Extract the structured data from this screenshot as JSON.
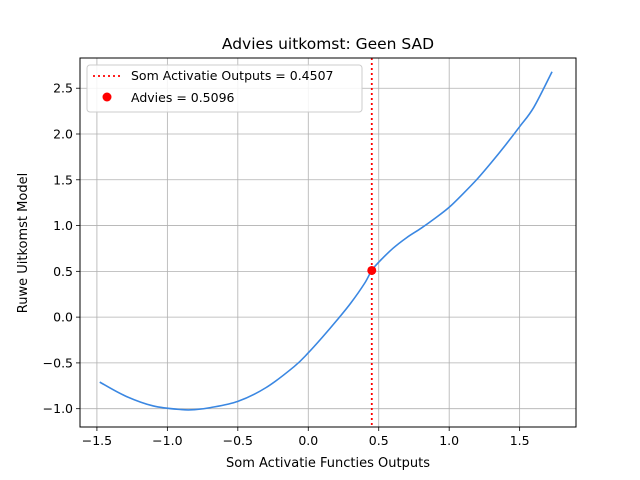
{
  "chart_data": {
    "type": "line",
    "title": "Advies uitkomst: Geen SAD",
    "xlabel": "Som Activatie Functies Outputs",
    "ylabel": "Ruwe Uitkomst Model",
    "xlim": [
      -1.62,
      1.9
    ],
    "ylim": [
      -1.2,
      2.83
    ],
    "xticks": [
      -1.5,
      -1.0,
      -0.5,
      0.0,
      0.5,
      1.0,
      1.5
    ],
    "xtick_labels": [
      "−1.5",
      "−1.0",
      "−0.5",
      "0.0",
      "0.5",
      "1.0",
      "1.5"
    ],
    "yticks": [
      -1.0,
      -0.5,
      0.0,
      0.5,
      1.0,
      1.5,
      2.0,
      2.5
    ],
    "ytick_labels": [
      "−1.0",
      "−0.5",
      "0.0",
      "0.5",
      "1.0",
      "1.5",
      "2.0",
      "2.5"
    ],
    "grid": true,
    "legend_position": "top-left",
    "series": [
      {
        "type": "line",
        "color": "#3a87e2",
        "x": [
          -1.48,
          -1.3,
          -1.1,
          -0.9,
          -0.8,
          -0.7,
          -0.5,
          -0.3,
          -0.1,
          0.0,
          0.1,
          0.2,
          0.3,
          0.4,
          0.45,
          0.5,
          0.6,
          0.7,
          0.8,
          0.9,
          1.0,
          1.1,
          1.2,
          1.3,
          1.4,
          1.5,
          1.6,
          1.73
        ],
        "y": [
          -0.71,
          -0.86,
          -0.97,
          -1.01,
          -1.01,
          -0.99,
          -0.92,
          -0.77,
          -0.54,
          -0.39,
          -0.22,
          -0.04,
          0.15,
          0.37,
          0.51,
          0.6,
          0.75,
          0.87,
          0.97,
          1.08,
          1.2,
          1.35,
          1.51,
          1.69,
          1.88,
          2.08,
          2.29,
          2.68
        ]
      },
      {
        "type": "vline",
        "name": "Som Activatie Outputs = 0.4507",
        "color": "#ff0000",
        "x": 0.4507,
        "style": "dotted"
      },
      {
        "type": "point",
        "name": "Advies = 0.5096",
        "color": "#ff0000",
        "x": 0.4507,
        "y": 0.5096
      }
    ]
  }
}
